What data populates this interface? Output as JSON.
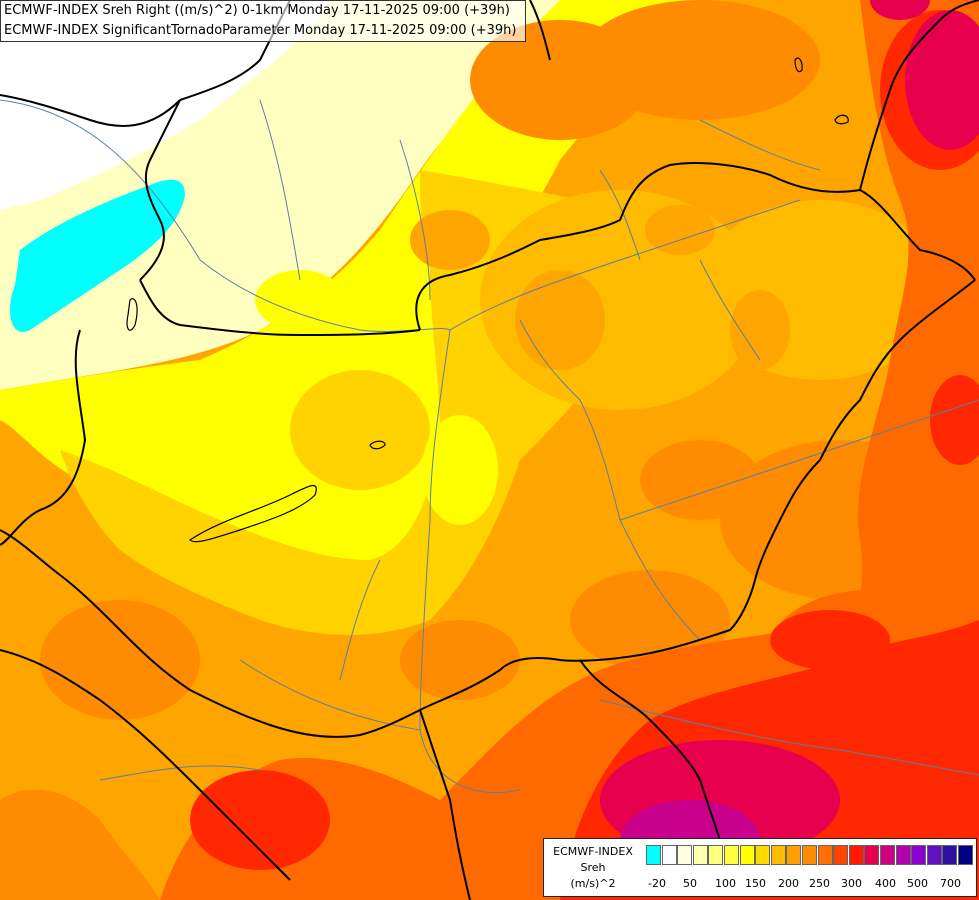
{
  "header": {
    "line1": "ECMWF-INDEX Sreh Right ((m/s)^2) 0-1km Monday 17-11-2025 09:00 (+39h)",
    "line2": "ECMWF-INDEX SignificantTornadoParameter Monday 17-11-2025 09:00 (+39h)"
  },
  "legend": {
    "title_line1": "ECMWF-INDEX",
    "title_line2": "Sreh",
    "title_line3": "(m/s)^2",
    "colors": [
      "#00ffff",
      "#ffffff",
      "#ffffe0",
      "#ffffb0",
      "#ffff80",
      "#ffff40",
      "#ffff00",
      "#ffd800",
      "#ffbb00",
      "#ffa000",
      "#ff8c00",
      "#ff6e00",
      "#ff4500",
      "#ff1a00",
      "#e6004d",
      "#cc0080",
      "#b000b0",
      "#8c00d0",
      "#6010c0",
      "#3010a0",
      "#000080"
    ],
    "ticks": [
      "-20",
      "50",
      "100",
      "150",
      "200",
      "250",
      "300",
      "400",
      "500",
      "700"
    ]
  },
  "map": {
    "colors": {
      "light_yellow": "#ffffc0",
      "yellow": "#ffff00",
      "golden": "#ffd200",
      "light_orange": "#ffbb00",
      "orange": "#ffa500",
      "dark_orange": "#ff8c00",
      "red_orange": "#ff6a00",
      "red": "#ff2800",
      "crimson": "#e6004d",
      "magenta": "#c8008c",
      "cyan": "#00ffff"
    }
  }
}
